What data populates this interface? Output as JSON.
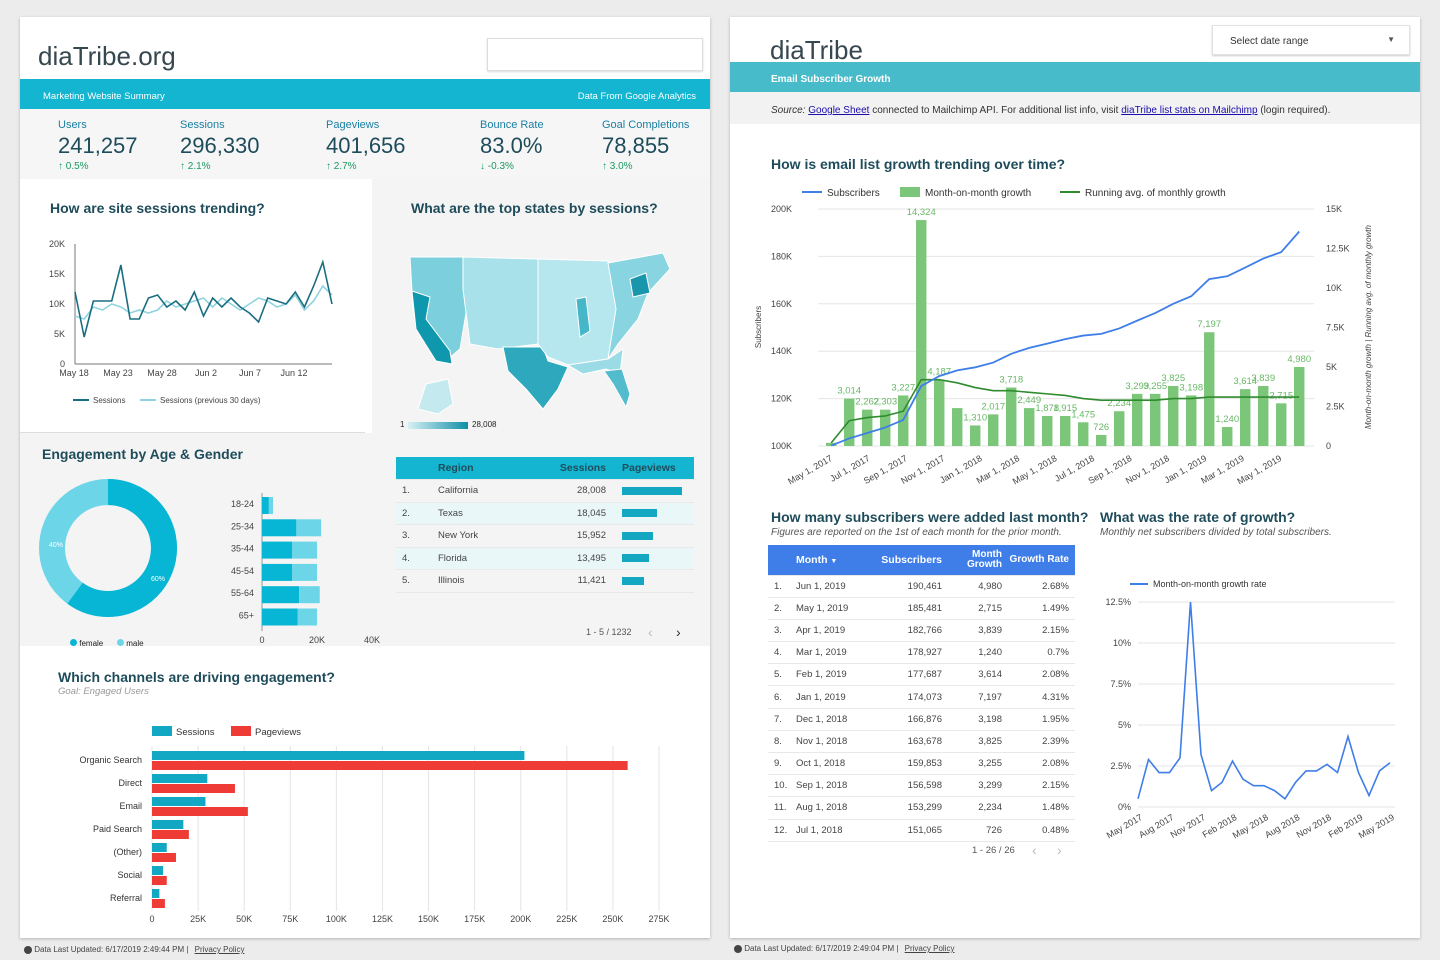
{
  "left": {
    "title": "diaTribe.org",
    "banner_left": "Marketing Website Summary",
    "banner_right": "Data From Google Analytics",
    "kpis": [
      {
        "label": "Users",
        "value": "241,257",
        "delta": "0.5%",
        "dir": "up"
      },
      {
        "label": "Sessions",
        "value": "296,330",
        "delta": "2.1%",
        "dir": "up"
      },
      {
        "label": "Pageviews",
        "value": "401,656",
        "delta": "2.7%",
        "dir": "up"
      },
      {
        "label": "Bounce Rate",
        "value": "83.0%",
        "delta": "-0.3%",
        "dir": "down"
      },
      {
        "label": "Goal Completions",
        "value": "78,855",
        "delta": "3.0%",
        "dir": "up"
      }
    ],
    "sessions_chart": {
      "title": "How are site sessions trending?",
      "yticks": [
        "20K",
        "15K",
        "10K",
        "5K",
        "0"
      ],
      "xticks": [
        "May 18",
        "May 23",
        "May 28",
        "Jun 2",
        "Jun 7",
        "Jun 12"
      ],
      "legend": [
        "Sessions",
        "Sessions (previous 30 days)"
      ]
    },
    "map": {
      "title": "What are the top states by sessions?",
      "scale_min": "1",
      "scale_max": "28,008"
    },
    "region_table": {
      "headers": [
        "Region",
        "Sessions",
        "Pageviews"
      ],
      "rows": [
        {
          "n": "1.",
          "region": "California",
          "sessions": "28,008",
          "pv": 1.0
        },
        {
          "n": "2.",
          "region": "Texas",
          "sessions": "18,045",
          "pv": 0.58
        },
        {
          "n": "3.",
          "region": "New York",
          "sessions": "15,952",
          "pv": 0.52
        },
        {
          "n": "4.",
          "region": "Florida",
          "sessions": "13,495",
          "pv": 0.45
        },
        {
          "n": "5.",
          "region": "Illinois",
          "sessions": "11,421",
          "pv": 0.37
        }
      ],
      "pagination": "1 - 5 / 1232"
    },
    "engagement": {
      "title": "Engagement by Age & Gender",
      "ages": [
        "18-24",
        "25-34",
        "35-44",
        "45-54",
        "55-64",
        "65+"
      ],
      "female": [
        2.5,
        12.5,
        11,
        11,
        13.5,
        13
      ],
      "male": [
        1.5,
        9,
        9,
        9,
        7.5,
        7
      ],
      "xticks": [
        "0",
        "20K",
        "40K"
      ],
      "donut_left": "40%",
      "donut_right": "60%",
      "legend": [
        "female",
        "male"
      ]
    },
    "channels": {
      "title": "Which channels are driving engagement?",
      "subtitle": "Goal: Engaged Users",
      "legend": [
        "Sessions",
        "Pageviews"
      ],
      "categories": [
        "Organic Search",
        "Direct",
        "Email",
        "Paid Search",
        "(Other)",
        "Social",
        "Referral"
      ],
      "xticks": [
        "0",
        "25K",
        "50K",
        "75K",
        "100K",
        "125K",
        "150K",
        "175K",
        "200K",
        "225K",
        "250K",
        "275K"
      ]
    },
    "footer": "Data Last Updated: 6/17/2019 2:49:44 PM",
    "privacy": "Privacy Policy"
  },
  "right": {
    "title": "diaTribe",
    "date_select": "Select date range",
    "banner": "Email Subscriber Growth",
    "source_label": "Source:",
    "source_link1": "Google Sheet",
    "source_mid": "connected to Mailchimp API. For additional list info, visit",
    "source_link2": "diaTribe list stats on Mailchimp",
    "source_end": "(login required).",
    "growth_chart": {
      "title": "How is email list growth trending over time?",
      "legend": [
        "Subscribers",
        "Month-on-month growth",
        "Running avg. of monthly growth"
      ],
      "ylabel_left": "Subscribers",
      "ylabel_right": "Month-on-month growth | Running avg. of monthly growth",
      "yticks_left": [
        "200K",
        "180K",
        "160K",
        "140K",
        "120K",
        "100K"
      ],
      "yticks_right": [
        "15K",
        "12.5K",
        "10K",
        "7.5K",
        "5K",
        "2.5K",
        "0"
      ],
      "xticks": [
        "May 1, 2017",
        "Jul 1, 2017",
        "Sep 1, 2017",
        "Nov 1, 2017",
        "Jan 1, 2018",
        "Mar 1, 2018",
        "May 1, 2018",
        "Jul 1, 2018",
        "Sep 1, 2018",
        "Nov 1, 2018",
        "Jan 1, 2019",
        "Mar 1, 2019",
        "May 1, 2019"
      ],
      "bar_labels": [
        "",
        "3,014",
        "2,262",
        "2,303",
        "3,227",
        "14,324",
        "4,187",
        "",
        "1,310",
        "2,017",
        "3,718",
        "2,449",
        "1,878",
        "1,915",
        "1,475",
        "726",
        "2,234",
        "3,299",
        "3,255",
        "3,825",
        "3,198",
        "7,197",
        "1,240",
        "3,614",
        "3,839",
        "2,715",
        "4,980"
      ],
      "bars": [
        0.2,
        3.0,
        2.3,
        2.3,
        3.2,
        14.3,
        4.2,
        2.4,
        1.3,
        2.0,
        3.7,
        2.4,
        1.9,
        1.9,
        1.5,
        0.7,
        2.2,
        3.3,
        3.3,
        3.8,
        3.2,
        7.2,
        1.2,
        3.6,
        3.8,
        2.7,
        5.0
      ]
    },
    "subs_table": {
      "title": "How many subscribers were added last month?",
      "subtitle": "Figures are reported on the 1st of each month for the prior month.",
      "headers": [
        "Month",
        "Subscribers",
        "Month Growth",
        "Growth Rate"
      ],
      "rows": [
        [
          "1.",
          "Jun 1, 2019",
          "190,461",
          "4,980",
          "2.68%"
        ],
        [
          "2.",
          "May 1, 2019",
          "185,481",
          "2,715",
          "1.49%"
        ],
        [
          "3.",
          "Apr 1, 2019",
          "182,766",
          "3,839",
          "2.15%"
        ],
        [
          "4.",
          "Mar 1, 2019",
          "178,927",
          "1,240",
          "0.7%"
        ],
        [
          "5.",
          "Feb 1, 2019",
          "177,687",
          "3,614",
          "2.08%"
        ],
        [
          "6.",
          "Jan 1, 2019",
          "174,073",
          "7,197",
          "4.31%"
        ],
        [
          "7.",
          "Dec 1, 2018",
          "166,876",
          "3,198",
          "1.95%"
        ],
        [
          "8.",
          "Nov 1, 2018",
          "163,678",
          "3,825",
          "2.39%"
        ],
        [
          "9.",
          "Oct 1, 2018",
          "159,853",
          "3,255",
          "2.08%"
        ],
        [
          "10.",
          "Sep 1, 2018",
          "156,598",
          "3,299",
          "2.15%"
        ],
        [
          "11.",
          "Aug 1, 2018",
          "153,299",
          "2,234",
          "1.48%"
        ],
        [
          "12.",
          "Jul 1, 2018",
          "151,065",
          "726",
          "0.48%"
        ]
      ],
      "pagination": "1 - 26 / 26"
    },
    "rate_chart": {
      "title": "What was the rate of growth?",
      "subtitle": "Monthly net subscribers divided by total subscribers.",
      "legend": "Month-on-month growth rate",
      "yticks": [
        "12.5%",
        "10%",
        "7.5%",
        "5%",
        "2.5%",
        "0%"
      ],
      "xticks": [
        "May 2017",
        "Aug 2017",
        "Nov 2017",
        "Feb 2018",
        "May 2018",
        "Aug 2018",
        "Nov 2018",
        "Feb 2019",
        "May 2019"
      ]
    },
    "footer": "Data Last Updated: 6/17/2019 2:49:04 PM",
    "privacy": "Privacy Policy"
  },
  "chart_data": [
    {
      "type": "line",
      "title": "How are site sessions trending?",
      "ylim": [
        0,
        20000
      ],
      "series": [
        {
          "name": "Sessions",
          "values": [
            12000,
            4500,
            10500,
            10500,
            10500,
            16500,
            7500,
            7500,
            11000,
            11500,
            9500,
            10500,
            9000,
            12000,
            8000,
            11000,
            9500,
            11000,
            9500,
            8500,
            7000,
            11000,
            10500,
            10000,
            12000,
            9500,
            13000,
            17000,
            10000
          ]
        },
        {
          "name": "Sessions (previous 30 days)",
          "values": [
            8000,
            7500,
            9500,
            9000,
            10000,
            9500,
            8500,
            9000,
            8500,
            9000,
            10500,
            9500,
            10000,
            10500,
            11000,
            9500,
            11000,
            10000,
            9000,
            10000,
            11000,
            10500,
            9500,
            10000,
            11500,
            9000,
            10500,
            13000,
            11500
          ]
        }
      ]
    },
    {
      "type": "bar",
      "title": "Which channels are driving engagement?",
      "categories": [
        "Organic Search",
        "Direct",
        "Email",
        "Paid Search",
        "(Other)",
        "Social",
        "Referral"
      ],
      "series": [
        {
          "name": "Sessions",
          "values": [
            202000,
            30000,
            29000,
            17000,
            8000,
            6000,
            4000
          ]
        },
        {
          "name": "Pageviews",
          "values": [
            258000,
            45000,
            52000,
            20000,
            13000,
            8000,
            7000
          ]
        }
      ],
      "xlim": [
        0,
        275000
      ]
    },
    {
      "type": "line",
      "title": "How is email list growth trending over time?",
      "series": [
        {
          "name": "Subscribers",
          "values": [
            100200,
            103200,
            105500,
            107800,
            111000,
            125300,
            129500,
            131900,
            133200,
            135200,
            138900,
            141400,
            143200,
            145100,
            146600,
            147300,
            149600,
            152900,
            156100,
            160000,
            163200,
            170400,
            171600,
            175300,
            179100,
            181800,
            190500
          ]
        },
        {
          "name": "Running avg. of monthly growth",
          "values": [
            200,
            1600,
            1800,
            1900,
            2200,
            4200,
            4200,
            4000,
            3700,
            3500,
            3500,
            3400,
            3300,
            3200,
            3000,
            2900,
            2900,
            2900,
            2900,
            3000,
            3000,
            3100,
            3100,
            3100,
            3100,
            3100,
            3100
          ]
        }
      ]
    },
    {
      "type": "line",
      "title": "What was the rate of growth?",
      "series": [
        {
          "name": "Month-on-month growth rate",
          "values": [
            0.5,
            2.9,
            2.1,
            2.1,
            3.0,
            12.5,
            3.2,
            1.0,
            1.5,
            2.8,
            1.7,
            1.3,
            1.3,
            1.0,
            0.5,
            1.5,
            2.2,
            2.2,
            2.6,
            2.1,
            4.3,
            2.1,
            0.7,
            2.2,
            2.7
          ]
        }
      ],
      "ylim": [
        0,
        12.5
      ]
    }
  ]
}
